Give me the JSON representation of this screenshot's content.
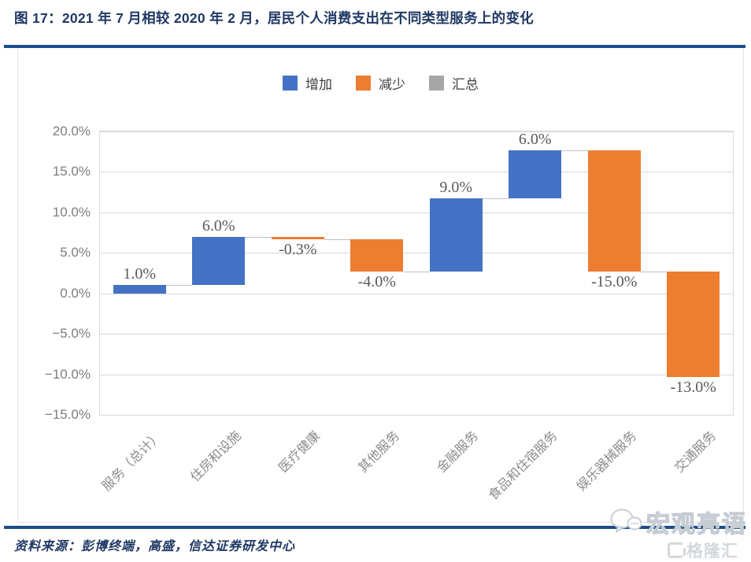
{
  "page": {
    "title": "图 17：2021 年 7 月相较 2020 年 2 月，居民个人消费支出在不同类型服务上的变化",
    "source": "资料来源：彭博终端，高盛，信达证券研发中心",
    "watermark": {
      "line1": "宏观亮语",
      "line2": "格隆汇"
    }
  },
  "legend": [
    {
      "label": "增加",
      "color": "#4472c4"
    },
    {
      "label": "减少",
      "color": "#ed7d31"
    },
    {
      "label": "汇总",
      "color": "#a6a6a6"
    }
  ],
  "chart_data": {
    "type": "bar",
    "subtype": "waterfall",
    "categories": [
      "服务（总计）",
      "住房和设施",
      "医疗健康",
      "其他服务",
      "金融服务",
      "食品和住宿服务",
      "娱乐器械服务",
      "交通服务"
    ],
    "values": [
      1.0,
      6.0,
      -0.3,
      -4.0,
      9.0,
      6.0,
      -15.0,
      -13.0
    ],
    "data_labels": [
      "1.0%",
      "6.0%",
      "-0.3%",
      "-4.0%",
      "9.0%",
      "6.0%",
      "-15.0%",
      "-13.0%"
    ],
    "y_ticks": [
      20,
      15,
      10,
      5,
      0,
      -5,
      -10,
      -15
    ],
    "y_tick_labels": [
      "20.0%",
      "15.0%",
      "10.0%",
      "5.0%",
      "0.0%",
      "−5.0%",
      "−10.0%",
      "−15.0%"
    ],
    "ylim": [
      -15,
      20
    ],
    "grid": true,
    "legend_position": "top",
    "colors": {
      "increase": "#4472c4",
      "decrease": "#ed7d31",
      "total": "#a6a6a6",
      "connector": "#c0c0c0"
    }
  }
}
